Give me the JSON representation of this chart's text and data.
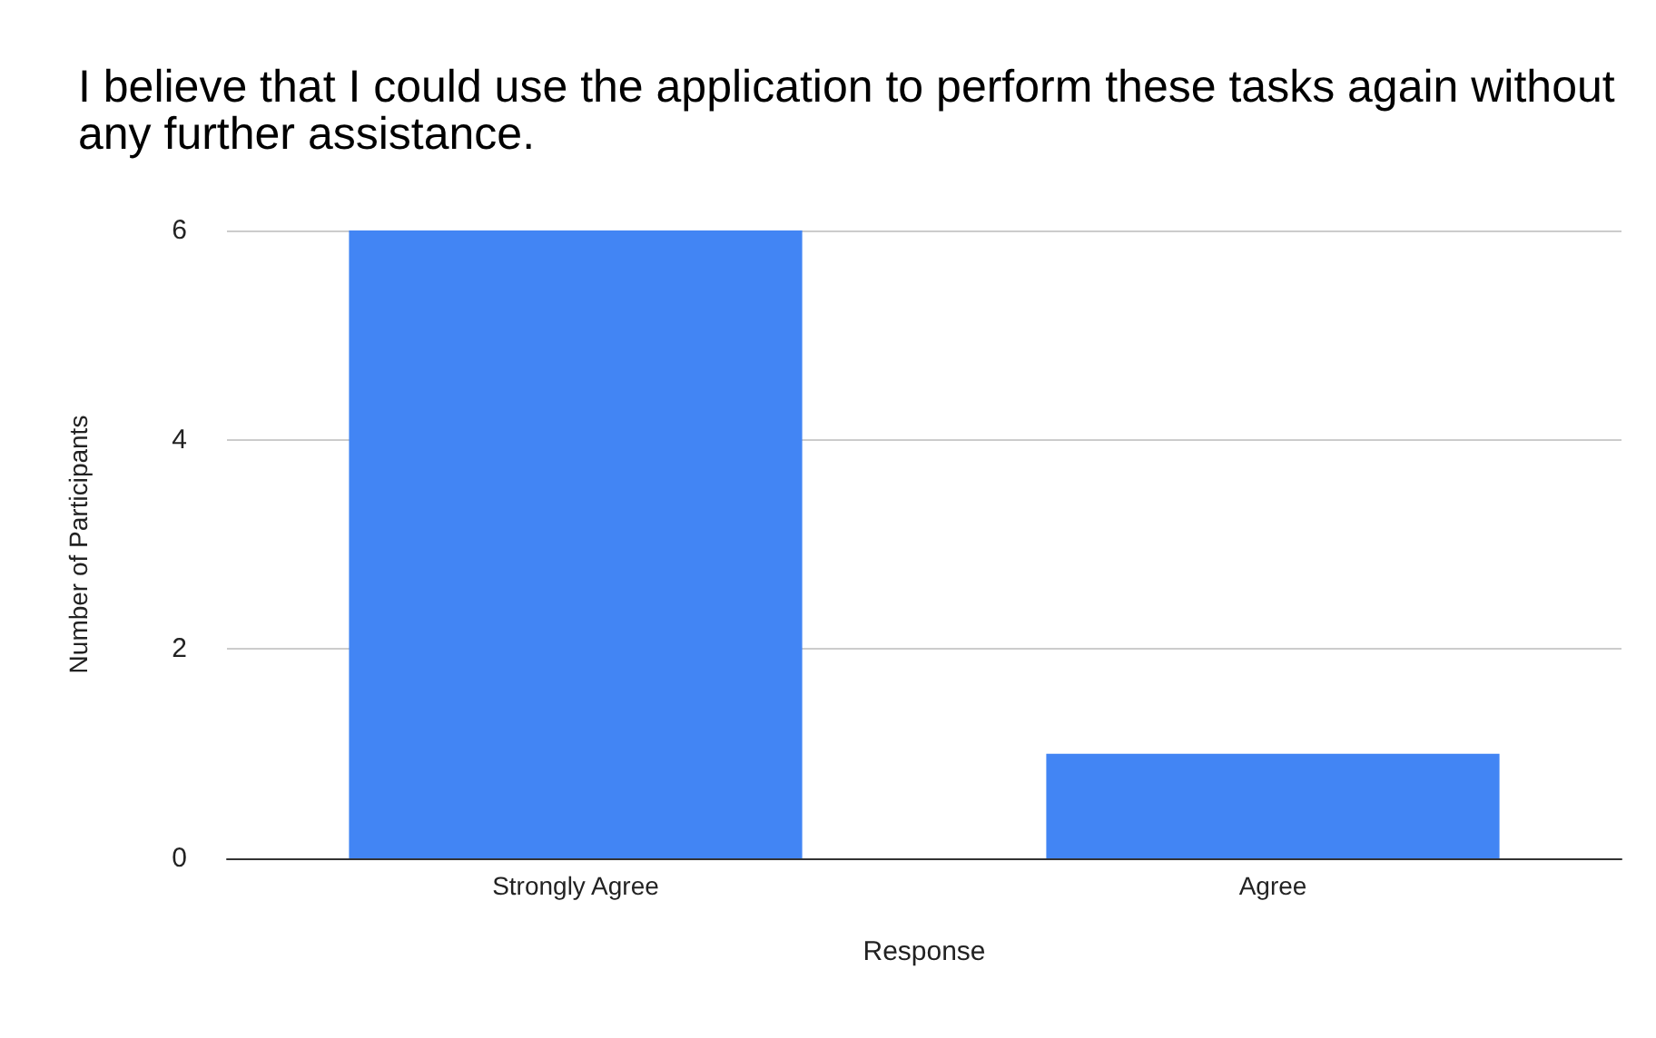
{
  "chart_data": {
    "type": "bar",
    "title": "I believe that I could use the application to perform these tasks again without any further assistance.",
    "xlabel": "Response",
    "ylabel": "Number of Participants",
    "categories": [
      "Strongly Agree",
      "Agree"
    ],
    "values": [
      6,
      1
    ],
    "color": "#4285f4",
    "ylim": [
      0,
      6
    ],
    "yticks": [
      0,
      2,
      4,
      6
    ],
    "grid": "y"
  }
}
